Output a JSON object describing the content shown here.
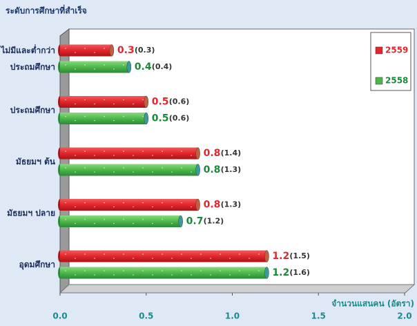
{
  "chart_data": {
    "type": "bar",
    "orientation": "horizontal",
    "title": "ระดับการศึกษาที่สำเร็จ",
    "x_label": "จำนวนแสนคน (อัตรา)",
    "categories": [
      "ไม่มีและต่ำกว่า\nประถมศึกษา",
      "ประถมศึกษา",
      "มัธยมฯ ต้น",
      "มัธยมฯ ปลาย",
      "อุดมศึกษา"
    ],
    "series": [
      {
        "name": "2559",
        "color": "#e3262b",
        "values": [
          0.3,
          0.5,
          0.8,
          0.8,
          1.2
        ],
        "rate_labels": [
          "(0.3)",
          "(0.6)",
          "(1.4)",
          "(1.3)",
          "(1.5)"
        ]
      },
      {
        "name": "2558",
        "color": "#4cb84a",
        "values": [
          0.4,
          0.5,
          0.8,
          0.7,
          1.2
        ],
        "rate_labels": [
          "(0.4)",
          "(0.6)",
          "(1.3)",
          "(1.2)",
          "(1.6)"
        ]
      }
    ],
    "xlim": [
      0,
      2
    ],
    "xticks": [
      {
        "value": 0,
        "label": "0.0"
      },
      0.5,
      {
        "value": 1,
        "label": "1.0"
      },
      1.5,
      {
        "value": 2,
        "label": "2.0"
      }
    ],
    "legend": "top-right"
  }
}
